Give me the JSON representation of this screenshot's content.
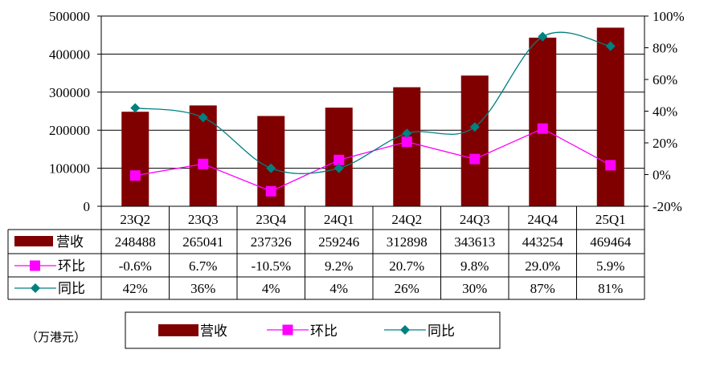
{
  "chart_data": {
    "type": "bar",
    "categories": [
      "23Q2",
      "23Q3",
      "23Q4",
      "24Q1",
      "24Q2",
      "24Q3",
      "24Q4",
      "25Q1"
    ],
    "unit_note": "（万港元）",
    "y_left": {
      "range": [
        0,
        500000
      ],
      "ticks": [
        "0",
        "100000",
        "200000",
        "300000",
        "400000",
        "500000"
      ]
    },
    "y_right": {
      "range": [
        -20,
        100
      ],
      "ticks": [
        "-20%",
        "0%",
        "20%",
        "40%",
        "60%",
        "80%",
        "100%"
      ]
    },
    "grid": true,
    "legend": "bottom",
    "colors": {
      "revenue": "#800000",
      "qoq": "#ff00ff",
      "yoy": "#008080"
    },
    "series": [
      {
        "name": "营收",
        "type": "bar",
        "axis": "left",
        "values": [
          248488,
          265041,
          237326,
          259246,
          312898,
          343613,
          443254,
          469464
        ],
        "labels": [
          "248488",
          "265041",
          "237326",
          "259246",
          "312898",
          "343613",
          "443254",
          "469464"
        ]
      },
      {
        "name": "环比",
        "type": "line",
        "axis": "right",
        "values": [
          -0.6,
          6.7,
          -10.5,
          9.2,
          20.7,
          9.8,
          29.0,
          5.9
        ],
        "labels": [
          "-0.6%",
          "6.7%",
          "-10.5%",
          "9.2%",
          "20.7%",
          "9.8%",
          "29.0%",
          "5.9%"
        ]
      },
      {
        "name": "同比",
        "type": "line",
        "axis": "right",
        "values": [
          42,
          36,
          4,
          4,
          26,
          30,
          87,
          81
        ],
        "labels": [
          "42%",
          "36%",
          "4%",
          "4%",
          "26%",
          "30%",
          "87%",
          "81%"
        ]
      }
    ]
  }
}
